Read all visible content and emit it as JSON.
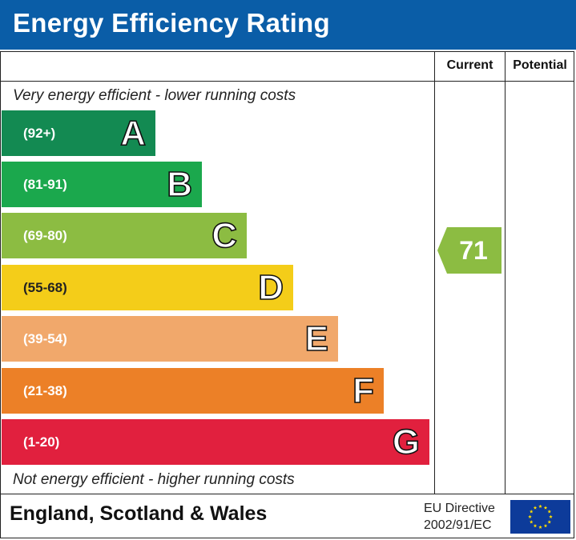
{
  "title": "Energy Efficiency Rating",
  "columns": {
    "current": "Current",
    "potential": "Potential"
  },
  "notes": {
    "top": "Very energy efficient - lower running costs",
    "bottom": "Not energy efficient - higher running costs"
  },
  "bands": [
    {
      "range": "(92+)",
      "letter": "A",
      "color": "#138a52"
    },
    {
      "range": "(81-91)",
      "letter": "B",
      "color": "#1ba84d"
    },
    {
      "range": "(69-80)",
      "letter": "C",
      "color": "#8cbc42"
    },
    {
      "range": "(55-68)",
      "letter": "D",
      "color": "#f4cd19"
    },
    {
      "range": "(39-54)",
      "letter": "E",
      "color": "#f1a86b"
    },
    {
      "range": "(21-38)",
      "letter": "F",
      "color": "#ec8027"
    },
    {
      "range": "(1-20)",
      "letter": "G",
      "color": "#e1203e"
    }
  ],
  "current_rating": {
    "value": "71",
    "color": "#8cbc42"
  },
  "footer": {
    "region": "England, Scotland & Wales",
    "directive_line1": "EU Directive",
    "directive_line2": "2002/91/EC",
    "flag_icon": "eu-flag-icon"
  },
  "colors": {
    "header": "#0a5da7"
  }
}
